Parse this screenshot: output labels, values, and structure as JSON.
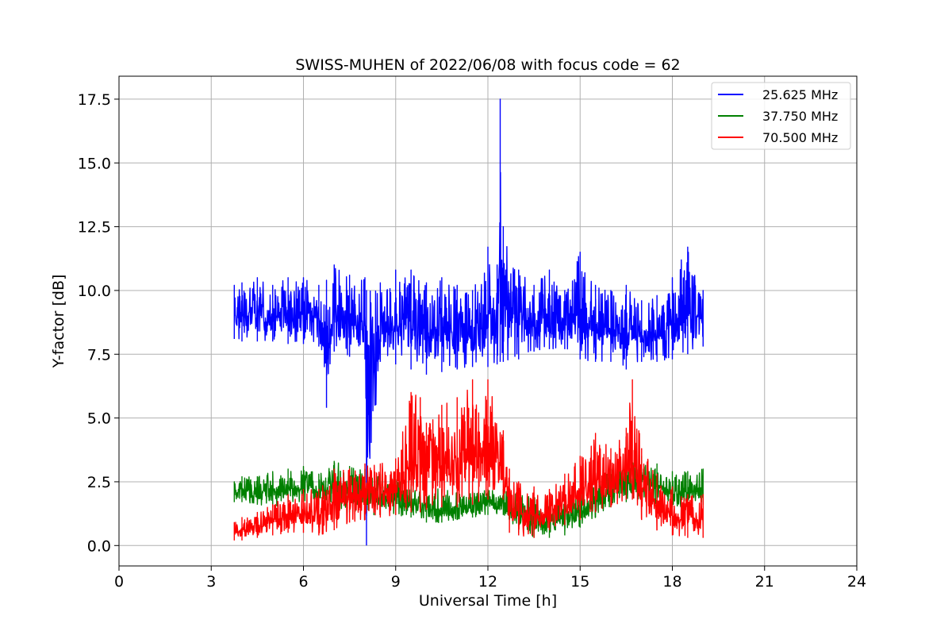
{
  "chart_data": {
    "type": "line",
    "title": "SWISS-MUHEN of 2022/06/08 with focus code = 62",
    "xlabel": "Universal Time [h]",
    "ylabel": "Y-factor [dB]",
    "xlim": [
      0,
      24
    ],
    "ylim": [
      -0.8,
      18.4
    ],
    "xticks": [
      0,
      3,
      6,
      9,
      12,
      15,
      18,
      21,
      24
    ],
    "xtick_labels": [
      "0",
      "3",
      "6",
      "9",
      "12",
      "15",
      "18",
      "21",
      "24"
    ],
    "yticks": [
      0.0,
      2.5,
      5.0,
      7.5,
      10.0,
      12.5,
      15.0,
      17.5
    ],
    "ytick_labels": [
      "0.0",
      "2.5",
      "5.0",
      "7.5",
      "10.0",
      "12.5",
      "15.0",
      "17.5"
    ],
    "grid": true,
    "legend_position": "top-right",
    "series": [
      {
        "name": "25.625 MHz",
        "color": "#0000ff",
        "x": [
          3.75,
          4.0,
          4.5,
          5.0,
          5.5,
          6.0,
          6.5,
          6.75,
          7.0,
          7.5,
          8.0,
          8.05,
          8.5,
          9.0,
          9.5,
          10.0,
          10.5,
          11.0,
          11.5,
          12.0,
          12.3,
          12.4,
          12.5,
          13.0,
          13.5,
          14.0,
          14.5,
          15.0,
          15.5,
          16.0,
          16.5,
          17.0,
          17.5,
          18.0,
          18.5,
          19.0
        ],
        "low": [
          8.1,
          8.0,
          8.0,
          8.0,
          7.9,
          7.9,
          7.8,
          5.4,
          7.6,
          7.4,
          7.3,
          0.0,
          7.2,
          7.1,
          6.9,
          6.7,
          6.8,
          6.9,
          7.0,
          7.0,
          7.1,
          7.2,
          7.2,
          7.3,
          7.6,
          7.7,
          7.7,
          7.3,
          7.2,
          7.2,
          6.9,
          7.2,
          7.2,
          7.3,
          7.5,
          7.8
        ],
        "high": [
          10.2,
          10.3,
          10.5,
          10.2,
          10.5,
          10.5,
          10.2,
          10.4,
          11.0,
          10.6,
          10.5,
          10.0,
          10.3,
          10.8,
          10.8,
          10.3,
          10.5,
          10.2,
          10.0,
          11.7,
          11.0,
          17.5,
          12.5,
          10.8,
          10.2,
          10.8,
          10.0,
          11.5,
          10.2,
          10.0,
          10.2,
          9.6,
          9.8,
          10.5,
          11.7,
          10.0
        ]
      },
      {
        "name": "37.750 MHz",
        "color": "#008000",
        "x": [
          3.75,
          4.0,
          4.5,
          5.0,
          5.5,
          6.0,
          6.5,
          7.0,
          7.5,
          8.0,
          8.5,
          9.0,
          9.5,
          10.0,
          10.5,
          11.0,
          11.5,
          12.0,
          12.5,
          13.0,
          13.5,
          14.0,
          14.5,
          15.0,
          15.5,
          16.0,
          16.5,
          17.0,
          17.5,
          18.0,
          18.5,
          19.0
        ],
        "low": [
          1.7,
          1.7,
          1.6,
          1.5,
          1.7,
          1.7,
          1.6,
          1.5,
          1.3,
          1.2,
          1.2,
          1.2,
          1.1,
          0.9,
          0.9,
          1.0,
          1.1,
          1.2,
          1.2,
          0.5,
          0.3,
          0.3,
          0.4,
          0.7,
          1.1,
          1.5,
          1.7,
          1.8,
          1.6,
          1.5,
          1.5,
          1.6
        ],
        "high": [
          2.5,
          2.7,
          2.7,
          2.9,
          3.0,
          3.1,
          2.8,
          3.3,
          3.1,
          3.0,
          2.8,
          2.6,
          2.4,
          2.3,
          2.2,
          2.1,
          2.1,
          2.2,
          2.2,
          2.0,
          1.9,
          1.8,
          2.0,
          2.2,
          2.4,
          3.0,
          3.4,
          3.5,
          3.2,
          2.9,
          2.9,
          3.0
        ]
      },
      {
        "name": "70.500 MHz",
        "color": "#ff0000",
        "x": [
          3.75,
          4.0,
          4.5,
          5.0,
          5.5,
          6.0,
          6.5,
          7.0,
          7.5,
          8.0,
          8.5,
          9.0,
          9.5,
          9.8,
          10.0,
          10.5,
          11.0,
          11.5,
          11.7,
          12.0,
          12.5,
          12.7,
          13.0,
          13.5,
          14.0,
          14.5,
          15.0,
          15.5,
          16.0,
          16.5,
          16.7,
          17.0,
          17.5,
          18.0,
          18.5,
          19.0
        ],
        "low": [
          0.2,
          0.2,
          0.3,
          0.4,
          0.5,
          0.5,
          0.4,
          0.6,
          0.9,
          1.0,
          1.1,
          1.2,
          1.3,
          1.3,
          1.4,
          1.5,
          1.5,
          1.6,
          1.7,
          1.8,
          1.8,
          0.5,
          0.4,
          0.3,
          0.6,
          0.8,
          1.0,
          1.3,
          1.5,
          1.8,
          1.8,
          1.0,
          0.6,
          0.4,
          0.3,
          0.3
        ],
        "high": [
          0.9,
          1.1,
          1.3,
          1.6,
          2.0,
          2.2,
          2.2,
          3.0,
          3.0,
          3.2,
          3.2,
          3.4,
          6.0,
          5.8,
          4.8,
          5.5,
          5.8,
          6.5,
          5.2,
          6.5,
          4.5,
          3.0,
          2.5,
          2.3,
          2.2,
          2.8,
          3.5,
          4.4,
          3.8,
          4.6,
          6.5,
          3.8,
          2.8,
          2.3,
          2.0,
          2.0
        ]
      }
    ]
  }
}
